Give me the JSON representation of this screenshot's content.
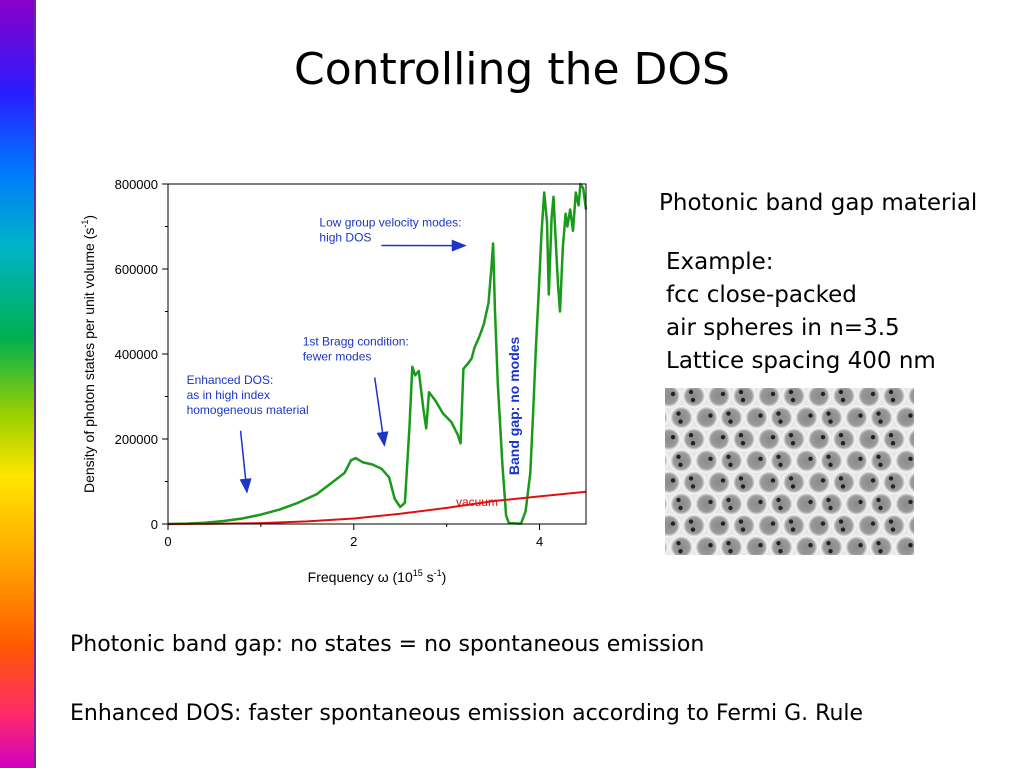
{
  "slide": {
    "title": "Controlling the DOS",
    "side_heading": "Photonic band gap material",
    "example_lines": [
      "Example:",
      "fcc close-packed",
      "air spheres in n=3.5",
      "Lattice spacing 400 nm"
    ],
    "footer_lines": [
      "Photonic band gap:  no states = no spontaneous emission",
      "Enhanced DOS:  faster spontaneous emission according to Fermi G. Rule"
    ]
  },
  "colors": {
    "dos": "#1a9a1a",
    "vacuum": "#e01010",
    "annotation": "#1a35c8",
    "frame": "#000000"
  },
  "chart_data": {
    "type": "line",
    "xlabel": "Frequency ω  (10^15 s^-1)",
    "ylabel": "Density of photon states per unit volume (s^-1)",
    "xlim": [
      0,
      4.5
    ],
    "ylim": [
      0,
      800000
    ],
    "x_ticks": [
      0,
      2,
      4
    ],
    "y_ticks": [
      0,
      200000,
      400000,
      600000,
      800000
    ],
    "grid": false,
    "series": [
      {
        "name": "",
        "color": "#1a9a1a",
        "points": [
          [
            0,
            0
          ],
          [
            0.2,
            1000
          ],
          [
            0.4,
            3000
          ],
          [
            0.6,
            7000
          ],
          [
            0.8,
            13000
          ],
          [
            1.0,
            22000
          ],
          [
            1.2,
            34000
          ],
          [
            1.4,
            50000
          ],
          [
            1.6,
            70000
          ],
          [
            1.75,
            95000
          ],
          [
            1.9,
            120000
          ],
          [
            1.97,
            150000
          ],
          [
            2.02,
            155000
          ],
          [
            2.1,
            145000
          ],
          [
            2.2,
            140000
          ],
          [
            2.3,
            130000
          ],
          [
            2.38,
            110000
          ],
          [
            2.44,
            60000
          ],
          [
            2.5,
            40000
          ],
          [
            2.55,
            50000
          ],
          [
            2.6,
            230000
          ],
          [
            2.63,
            370000
          ],
          [
            2.66,
            350000
          ],
          [
            2.7,
            360000
          ],
          [
            2.75,
            270000
          ],
          [
            2.78,
            225000
          ],
          [
            2.81,
            310000
          ],
          [
            2.88,
            290000
          ],
          [
            2.96,
            260000
          ],
          [
            3.05,
            240000
          ],
          [
            3.12,
            210000
          ],
          [
            3.15,
            190000
          ],
          [
            3.18,
            365000
          ],
          [
            3.22,
            375000
          ],
          [
            3.27,
            390000
          ],
          [
            3.3,
            415000
          ],
          [
            3.35,
            440000
          ],
          [
            3.4,
            470000
          ],
          [
            3.45,
            520000
          ],
          [
            3.48,
            600000
          ],
          [
            3.5,
            660000
          ],
          [
            3.52,
            500000
          ],
          [
            3.55,
            330000
          ],
          [
            3.6,
            140000
          ],
          [
            3.64,
            20000
          ],
          [
            3.67,
            2000
          ],
          [
            3.8,
            1000
          ],
          [
            3.85,
            30000
          ],
          [
            3.9,
            120000
          ],
          [
            3.93,
            260000
          ],
          [
            3.96,
            410000
          ],
          [
            3.99,
            540000
          ],
          [
            4.02,
            680000
          ],
          [
            4.05,
            780000
          ],
          [
            4.08,
            710000
          ],
          [
            4.1,
            540000
          ],
          [
            4.13,
            720000
          ],
          [
            4.15,
            770000
          ],
          [
            4.18,
            640000
          ],
          [
            4.2,
            560000
          ],
          [
            4.22,
            500000
          ],
          [
            4.25,
            650000
          ],
          [
            4.28,
            730000
          ],
          [
            4.3,
            700000
          ],
          [
            4.33,
            740000
          ],
          [
            4.36,
            690000
          ],
          [
            4.39,
            780000
          ],
          [
            4.42,
            750000
          ],
          [
            4.44,
            800000
          ],
          [
            4.47,
            790000
          ],
          [
            4.5,
            740000
          ]
        ]
      },
      {
        "name": "vacuum",
        "color": "#e01010",
        "points": [
          [
            0,
            0
          ],
          [
            0.5,
            500
          ],
          [
            1.0,
            2000
          ],
          [
            1.5,
            6000
          ],
          [
            2.0,
            13000
          ],
          [
            2.5,
            24000
          ],
          [
            3.0,
            38000
          ],
          [
            3.5,
            54000
          ],
          [
            4.0,
            65000
          ],
          [
            4.5,
            76000
          ]
        ]
      }
    ],
    "annotations": [
      {
        "lines": [
          "Low group velocity modes:",
          "high DOS"
        ],
        "x": 1.63,
        "y": 700000,
        "arrow_to": [
          3.2,
          655000
        ]
      },
      {
        "lines": [
          "1st Bragg  condition:",
          "fewer modes"
        ],
        "x": 1.45,
        "y": 420000,
        "arrow_to": [
          2.33,
          185000
        ]
      },
      {
        "lines": [
          "Enhanced DOS:",
          "as in high index",
          "homogeneous material"
        ],
        "x": 0.2,
        "y": 330000,
        "arrow_to": [
          0.85,
          75000
        ]
      }
    ],
    "vertical_label": {
      "text": "Band gap: no modes",
      "x": 3.78,
      "y": 115000
    }
  }
}
